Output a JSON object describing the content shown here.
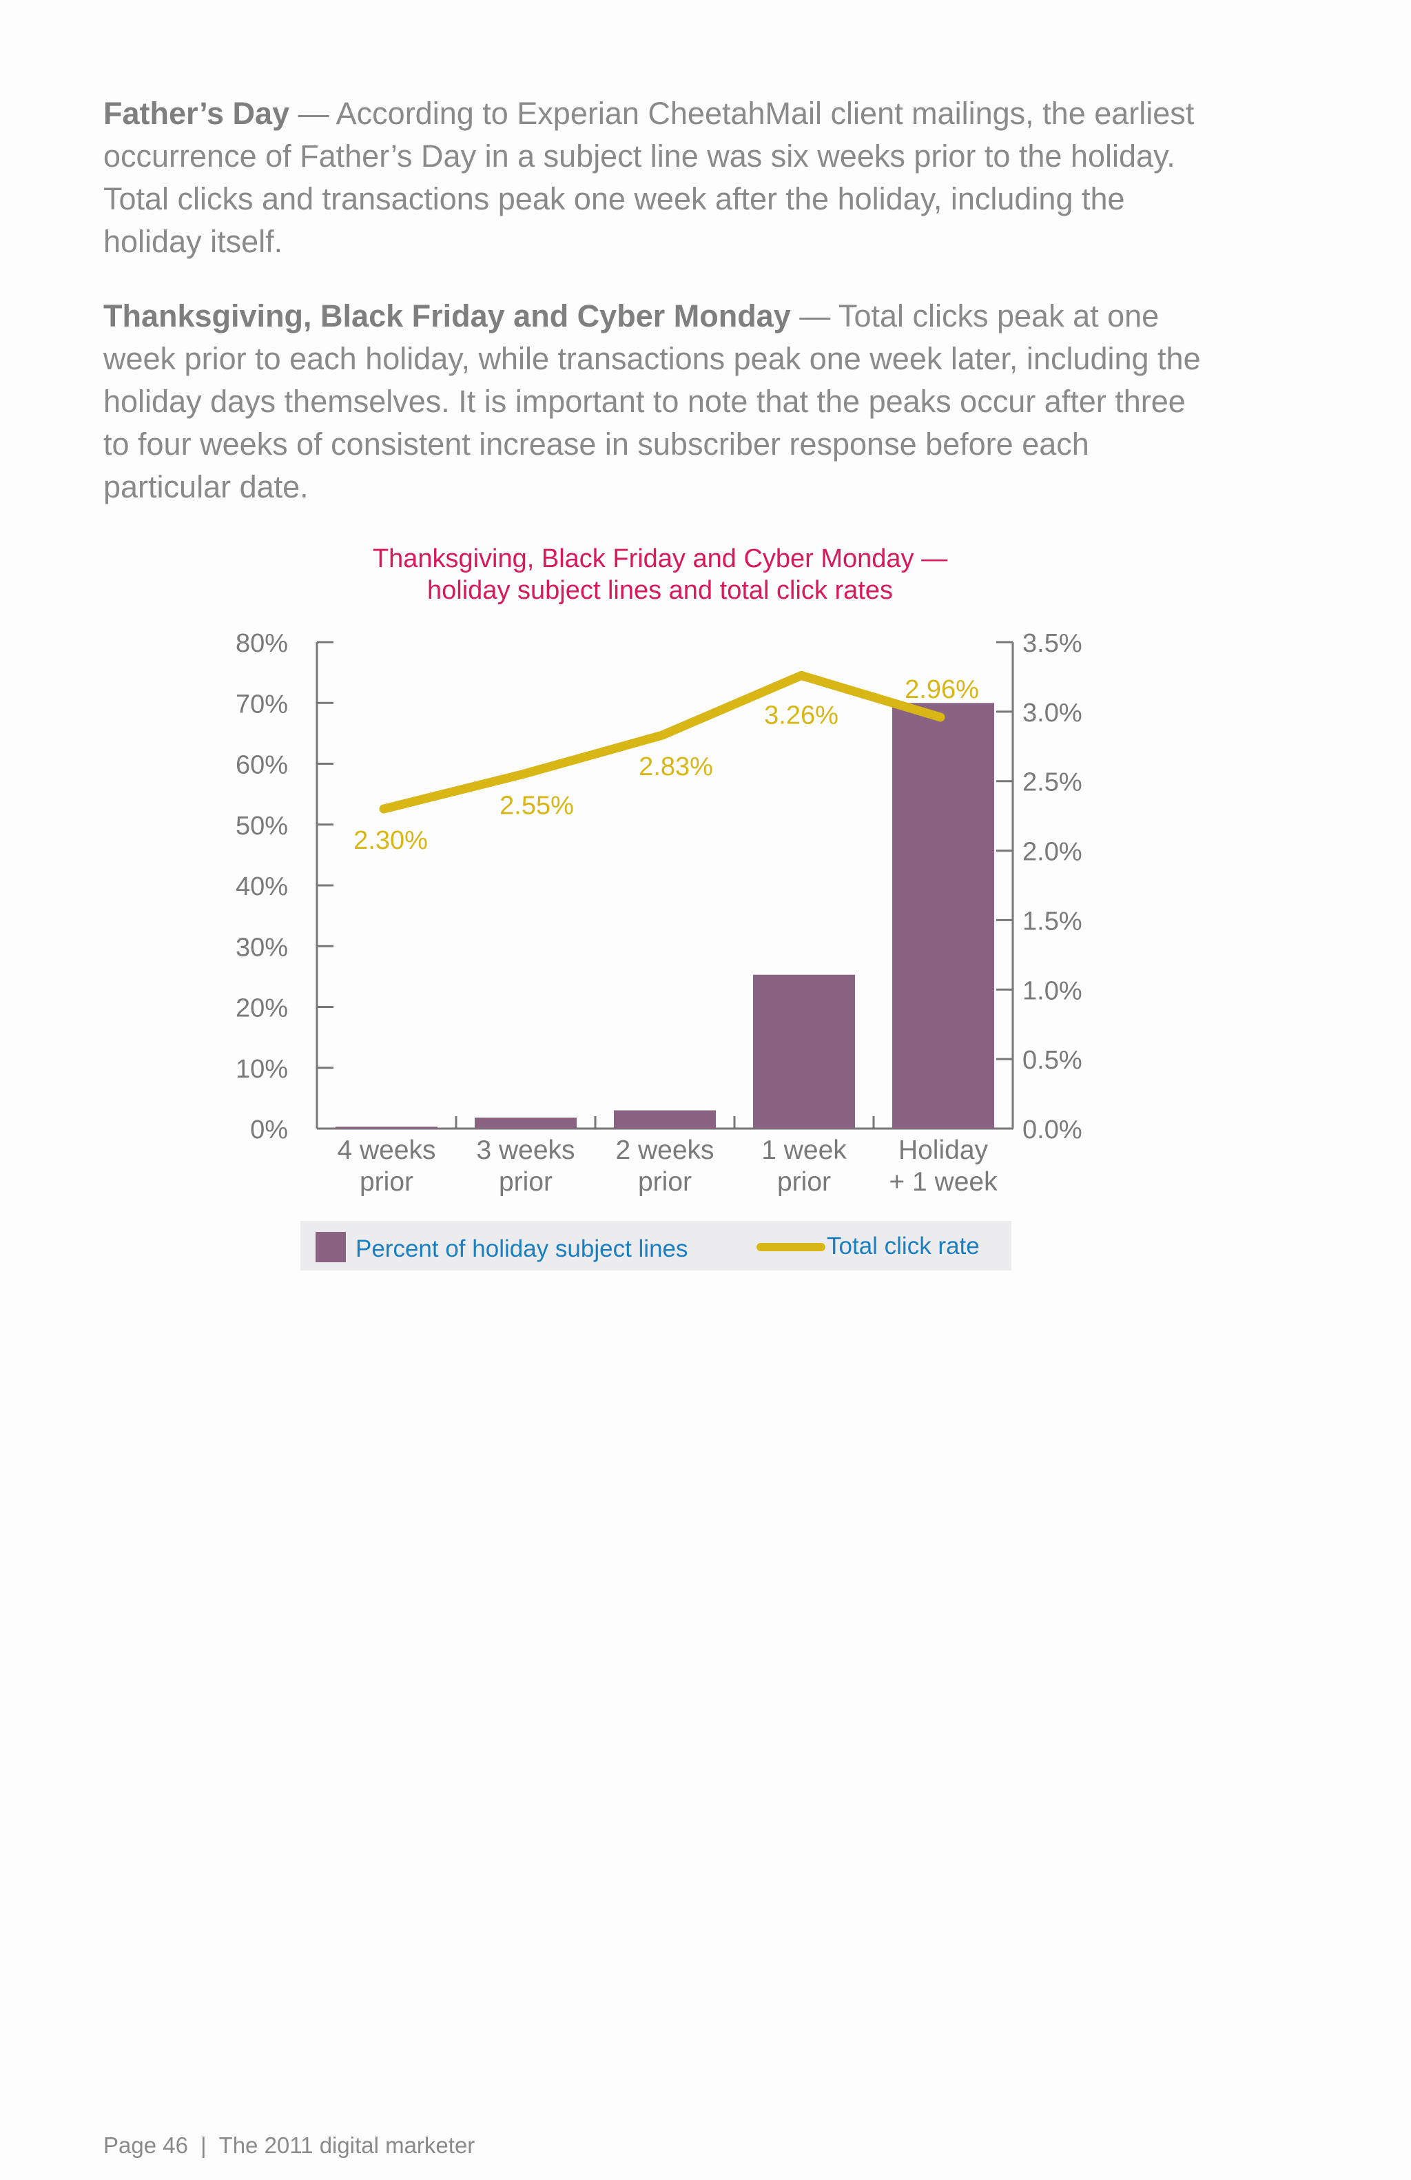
{
  "paragraphs": [
    {
      "heading": "Father’s Day",
      "dash": " — ",
      "body": "According to Experian CheetahMail client mailings, the earliest occurrence of Father’s Day in a subject line was six weeks prior to the holiday. Total clicks and transactions peak one week after the holiday, including the holiday itself."
    },
    {
      "heading": "Thanksgiving, Black Friday and Cyber Monday",
      "dash": " — ",
      "body": "Total clicks peak at one week prior to each holiday, while transactions peak one week later, including the holiday days themselves. It is important to note that the peaks occur after three to four weeks of consistent increase in subscriber response before each particular date."
    }
  ],
  "chart_data": {
    "type": "bar",
    "title_lines": [
      "Thanksgiving, Black Friday and Cyber Monday —",
      "holiday subject lines and total click rates"
    ],
    "categories": [
      [
        "4 weeks",
        "prior"
      ],
      [
        "3 weeks",
        "prior"
      ],
      [
        "2 weeks",
        "prior"
      ],
      [
        "1 week",
        "prior"
      ],
      [
        "Holiday",
        "+ 1 week"
      ]
    ],
    "series": [
      {
        "name": "Percent of holiday subject lines",
        "type": "bar",
        "axis": "left",
        "values": [
          0.3,
          1.8,
          3.0,
          25.3,
          70.0
        ]
      },
      {
        "name": "Total click rate",
        "type": "line",
        "axis": "right",
        "values": [
          2.3,
          2.55,
          2.83,
          3.26,
          2.96
        ],
        "labels": [
          "2.30%",
          "2.55%",
          "2.83%",
          "3.26%",
          "2.96%"
        ]
      }
    ],
    "y_left": {
      "range": [
        0,
        80
      ],
      "ticks": [
        "0%",
        "10%",
        "20%",
        "30%",
        "40%",
        "50%",
        "60%",
        "70%",
        "80%"
      ]
    },
    "y_right": {
      "range": [
        0,
        3.5
      ],
      "ticks": [
        "0.0%",
        "0.5%",
        "1.0%",
        "1.5%",
        "2.0%",
        "2.5%",
        "3.0%",
        "3.5%"
      ]
    },
    "legend": {
      "placement": "bottom"
    },
    "colors": {
      "bar": "#8a6382",
      "line": "#d8b616",
      "title": "#d8195a",
      "legend_text": "#1a7fc0",
      "legend_bg": "#ececee",
      "axis": "#777777"
    }
  },
  "footer": {
    "page": "Page 46",
    "separator": "|",
    "publication": "The 2011 digital marketer"
  }
}
